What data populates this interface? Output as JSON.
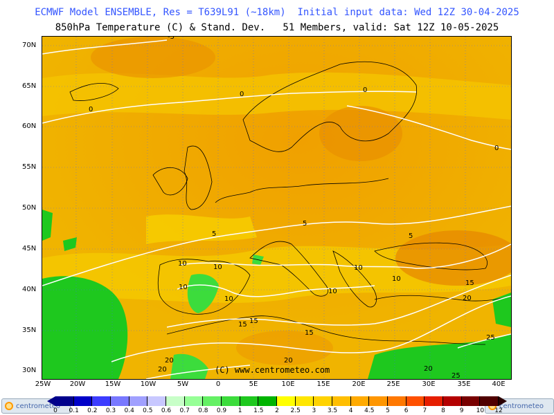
{
  "title_line1": "ECMWF Model ENSEMBLE, Res = T639L91 (~18km)  Initial input data: Wed 12Z 30-04-2025",
  "title_line2": "850hPa Temperature (C) & Stand. Dev.   51 Members, valid: Sat 12Z 10-05-2025",
  "copyright": "(C) www.centrometeo.com",
  "logo_text": "centrometeo",
  "lat_labels": [
    "70N",
    "65N",
    "60N",
    "55N",
    "50N",
    "45N",
    "40N",
    "35N",
    "30N"
  ],
  "lon_labels": [
    "25W",
    "20W",
    "15W",
    "10W",
    "5W",
    "0",
    "5E",
    "10E",
    "15E",
    "20E",
    "25E",
    "30E",
    "35E",
    "40E"
  ],
  "colorbar": {
    "labels": [
      "0",
      "0.1",
      "0.2",
      "0.3",
      "0.4",
      "0.5",
      "0.6",
      "0.7",
      "0.8",
      "0.9",
      "1",
      "1.5",
      "2",
      "2.5",
      "3",
      "3.5",
      "4",
      "4.5",
      "5",
      "6",
      "7",
      "8",
      "9",
      "10",
      "12"
    ],
    "colors": [
      "#00008c",
      "#0000c8",
      "#3c3cff",
      "#7878ff",
      "#a0a0ff",
      "#c8c8ff",
      "#c8ffc8",
      "#96ff96",
      "#64f064",
      "#3cdc3c",
      "#1ec81e",
      "#00b400",
      "#ffff00",
      "#ffe600",
      "#ffd200",
      "#ffbe00",
      "#ffaa00",
      "#ff9600",
      "#ff7800",
      "#ff5000",
      "#e61e00",
      "#b40000",
      "#780000",
      "#500000"
    ]
  },
  "contour_labels": [
    {
      "text": "0",
      "key": "c0a"
    },
    {
      "text": "0",
      "key": "c0b"
    },
    {
      "text": "0",
      "key": "c0c"
    },
    {
      "text": "0",
      "key": "c0d"
    },
    {
      "text": "5",
      "key": "c5a"
    },
    {
      "text": "5",
      "key": "c5b"
    },
    {
      "text": "5",
      "key": "c5c"
    },
    {
      "text": "-5",
      "key": "c5d"
    },
    {
      "text": "10",
      "key": "c10a"
    },
    {
      "text": "10",
      "key": "c10b"
    },
    {
      "text": "10",
      "key": "c10c"
    },
    {
      "text": "10",
      "key": "c10d"
    },
    {
      "text": "10",
      "key": "c10e"
    },
    {
      "text": "10",
      "key": "c10f"
    },
    {
      "text": "10",
      "key": "c10g"
    },
    {
      "text": "15",
      "key": "c15a"
    },
    {
      "text": "15",
      "key": "c15b"
    },
    {
      "text": "15",
      "key": "c15c"
    },
    {
      "text": "15",
      "key": "c15d"
    },
    {
      "text": "20",
      "key": "c20a"
    },
    {
      "text": "20",
      "key": "c20b"
    },
    {
      "text": "20",
      "key": "c20c"
    },
    {
      "text": "20",
      "key": "c20d"
    },
    {
      "text": "20",
      "key": "c20e"
    },
    {
      "text": "25",
      "key": "c25a"
    },
    {
      "text": "25",
      "key": "c25b"
    }
  ]
}
